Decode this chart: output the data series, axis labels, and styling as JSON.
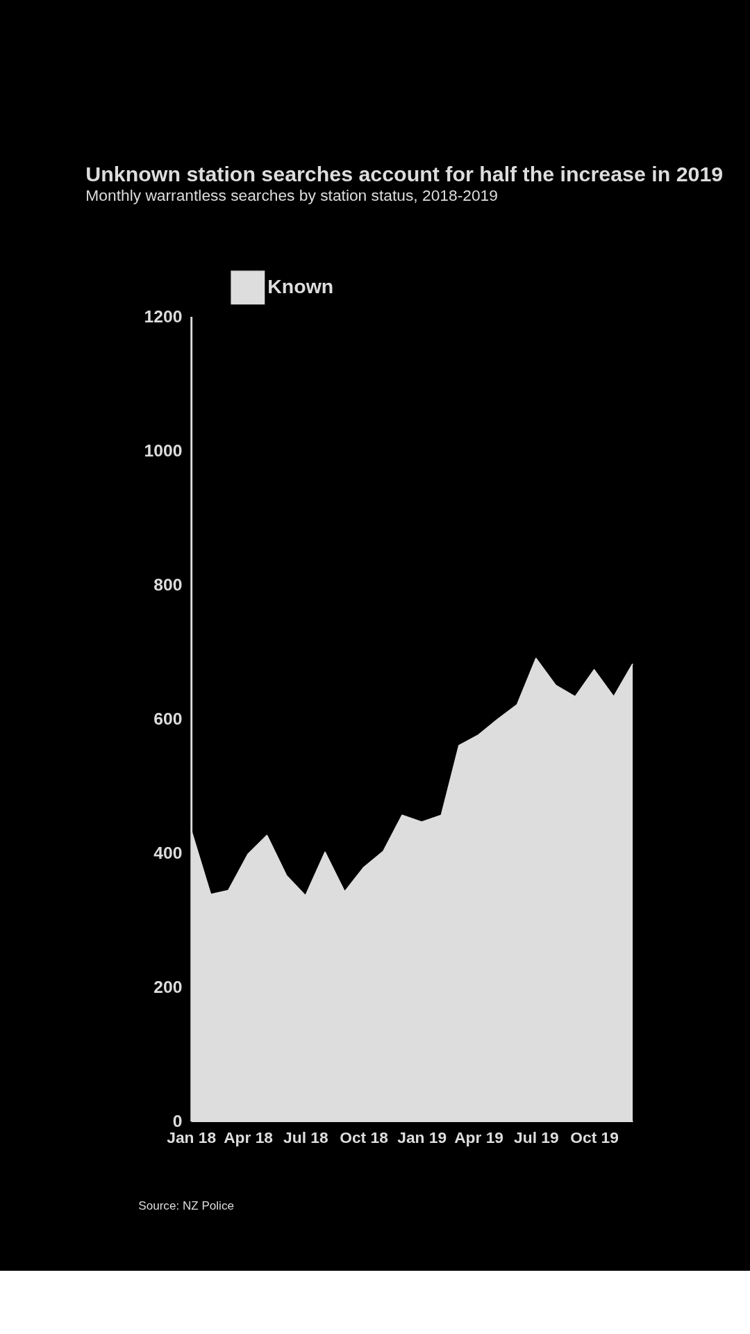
{
  "chart_data": {
    "type": "area",
    "title": "Unknown station searches account for half the increase in 2019",
    "subtitle": "Monthly warrantless searches by station status, 2018-2019",
    "x": [
      "2018-01",
      "2018-02",
      "2018-03",
      "2018-04",
      "2018-05",
      "2018-06",
      "2018-07",
      "2018-08",
      "2018-09",
      "2018-10",
      "2018-11",
      "2018-12",
      "2019-01",
      "2019-02",
      "2019-03",
      "2019-04",
      "2019-05",
      "2019-06",
      "2019-07",
      "2019-08",
      "2019-09",
      "2019-10",
      "2019-11",
      "2019-12"
    ],
    "series": [
      {
        "name": "Known",
        "color": "#dddddd",
        "values": [
          434,
          338,
          344,
          398,
          426,
          366,
          336,
          401,
          342,
          378,
          402,
          456,
          446,
          456,
          560,
          576,
          599,
          621,
          690,
          650,
          633,
          673,
          633,
          682
        ]
      }
    ],
    "xlim": [
      "2018-01",
      "2019-12"
    ],
    "xticks": [
      {
        "value": "2018-01",
        "label": "Jan 18"
      },
      {
        "value": "2018-04",
        "label": "Apr 18"
      },
      {
        "value": "2018-07",
        "label": "Jul 18"
      },
      {
        "value": "2018-10",
        "label": "Oct 18"
      },
      {
        "value": "2019-01",
        "label": "Jan 19"
      },
      {
        "value": "2019-04",
        "label": "Apr 19"
      },
      {
        "value": "2019-07",
        "label": "Jul 19"
      },
      {
        "value": "2019-10",
        "label": "Oct 19"
      }
    ],
    "ylim": [
      0,
      1200
    ],
    "yticks": [
      0,
      200,
      400,
      600,
      800,
      1000,
      1200
    ],
    "grid": false,
    "legend": "top left",
    "annotations": [
      "Source: NZ Police"
    ]
  }
}
